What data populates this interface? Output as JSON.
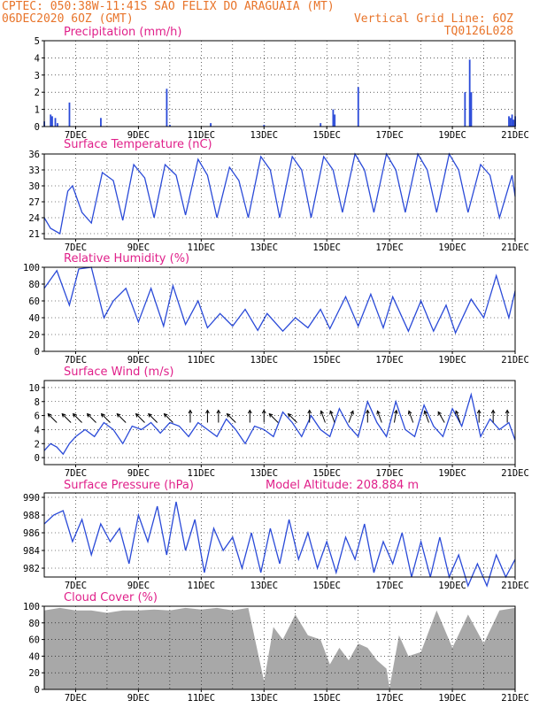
{
  "header": {
    "line1_left": "CPTEC:   050:38W-11:41S   SAO FELIX DO ARAGUAIA (MT)",
    "line2_left": "06DEC2020 6OZ (GMT)",
    "line2_right": "Vertical Grid Line: 6OZ",
    "line3_right": "TQ0126L028"
  },
  "colors": {
    "header_text": "#e8742a",
    "panel_title": "#e0208a",
    "series_line": "#2a4ad8",
    "cloud_fill": "#a8a8a8"
  },
  "x_axis": {
    "days": [
      6,
      21
    ],
    "tick_labels": [
      "7DEC",
      "9DEC",
      "11DEC",
      "13DEC",
      "15DEC",
      "17DEC",
      "19DEC",
      "21DEC"
    ]
  },
  "panels": {
    "precip": {
      "title": "Precipitation (mm/h)"
    },
    "temp": {
      "title": "Surface Temperature (nC)"
    },
    "rh": {
      "title": "Relative Humidity (%)"
    },
    "wind": {
      "title": "Surface Wind (m/s)"
    },
    "pressure": {
      "title": "Surface Pressure (hPa)",
      "model_altitude": "Model Altitude: 208.884 m"
    },
    "cloud": {
      "title": "Cloud Cover (%)"
    }
  },
  "chart_data": [
    {
      "type": "bar",
      "name": "Precipitation",
      "ylabel": "mm/h",
      "ylim": [
        0,
        5
      ],
      "yticks": [
        "0",
        "1",
        "2",
        "3",
        "4",
        "5"
      ],
      "x_day": [
        6.0,
        6.2,
        6.25,
        6.35,
        6.42,
        6.8,
        7.8,
        9.9,
        10.0,
        11.3,
        13.0,
        14.8,
        15.2,
        15.25,
        16.0,
        19.4,
        19.55,
        19.6,
        20.8,
        20.85,
        20.9,
        20.95,
        21.0
      ],
      "values": [
        0.3,
        0.7,
        0.6,
        0.5,
        0.2,
        1.4,
        0.5,
        2.2,
        0.1,
        0.2,
        0.1,
        0.2,
        1.0,
        0.7,
        2.3,
        2.0,
        3.9,
        2.0,
        0.6,
        0.5,
        0.7,
        0.4,
        0.6
      ],
      "grid": true
    },
    {
      "type": "line",
      "name": "Surface Temperature",
      "ylim": [
        20,
        36
      ],
      "yticks": [
        "21",
        "24",
        "27",
        "30",
        "33",
        "36"
      ],
      "x_day": [
        6.0,
        6.2,
        6.5,
        6.75,
        6.9,
        7.2,
        7.5,
        7.85,
        8.2,
        8.5,
        8.85,
        9.2,
        9.5,
        9.85,
        10.2,
        10.5,
        10.9,
        11.2,
        11.5,
        11.9,
        12.2,
        12.5,
        12.9,
        13.2,
        13.5,
        13.9,
        14.2,
        14.5,
        14.9,
        15.2,
        15.5,
        15.9,
        16.2,
        16.5,
        16.9,
        17.2,
        17.5,
        17.9,
        18.2,
        18.5,
        18.9,
        19.2,
        19.5,
        19.9,
        20.2,
        20.5,
        20.9,
        21.0
      ],
      "values": [
        24.0,
        22.0,
        21.0,
        29.0,
        30.0,
        25.0,
        23.0,
        32.5,
        31.0,
        23.5,
        34.0,
        31.5,
        24.0,
        34.0,
        32.0,
        24.5,
        35.0,
        32.0,
        24.0,
        33.5,
        31.0,
        24.0,
        35.5,
        33.0,
        24.0,
        35.5,
        33.0,
        24.0,
        35.5,
        33.0,
        25.0,
        36.0,
        33.0,
        25.0,
        36.0,
        33.0,
        25.0,
        36.0,
        33.0,
        25.0,
        36.0,
        33.0,
        25.0,
        34.0,
        32.0,
        24.0,
        32.0,
        28.0
      ],
      "grid": true
    },
    {
      "type": "line",
      "name": "Relative Humidity",
      "ylim": [
        0,
        100
      ],
      "yticks": [
        "0",
        "20",
        "40",
        "60",
        "80",
        "100"
      ],
      "x_day": [
        6.0,
        6.4,
        6.8,
        7.1,
        7.5,
        7.9,
        8.2,
        8.6,
        9.0,
        9.4,
        9.8,
        10.1,
        10.5,
        10.9,
        11.2,
        11.6,
        12.0,
        12.4,
        12.8,
        13.1,
        13.6,
        14.0,
        14.4,
        14.8,
        15.1,
        15.6,
        16.0,
        16.4,
        16.8,
        17.1,
        17.6,
        18.0,
        18.4,
        18.8,
        19.1,
        19.6,
        20.0,
        20.4,
        20.8,
        21.0
      ],
      "values": [
        75,
        96,
        55,
        98,
        100,
        40,
        60,
        75,
        35,
        75,
        30,
        78,
        32,
        60,
        28,
        45,
        30,
        50,
        25,
        45,
        24,
        40,
        28,
        50,
        27,
        65,
        30,
        68,
        28,
        65,
        24,
        60,
        24,
        55,
        22,
        62,
        40,
        90,
        40,
        72
      ],
      "grid": true
    },
    {
      "type": "line",
      "name": "Surface Wind",
      "ylim": [
        -1,
        11
      ],
      "yticks": [
        "0",
        "2",
        "4",
        "6",
        "8",
        "10"
      ],
      "x_day": [
        6.0,
        6.2,
        6.4,
        6.6,
        6.8,
        7.0,
        7.3,
        7.6,
        7.9,
        8.2,
        8.5,
        8.8,
        9.1,
        9.4,
        9.7,
        10.0,
        10.3,
        10.6,
        10.9,
        11.2,
        11.5,
        11.8,
        12.1,
        12.4,
        12.7,
        13.0,
        13.3,
        13.6,
        13.9,
        14.2,
        14.5,
        14.8,
        15.1,
        15.4,
        15.7,
        16.0,
        16.3,
        16.6,
        16.9,
        17.2,
        17.5,
        17.8,
        18.1,
        18.4,
        18.7,
        19.0,
        19.3,
        19.6,
        19.9,
        20.2,
        20.5,
        20.8,
        21.0
      ],
      "values": [
        1.0,
        2.0,
        1.5,
        0.5,
        2.0,
        3.0,
        4.0,
        3.0,
        5.0,
        4.0,
        2.0,
        4.5,
        4.0,
        5.0,
        3.5,
        5.0,
        4.5,
        3.0,
        5.0,
        4.0,
        3.0,
        5.5,
        4.0,
        2.0,
        4.5,
        4.0,
        3.0,
        6.5,
        5.0,
        3.0,
        6.0,
        4.0,
        3.0,
        7.0,
        4.5,
        3.0,
        8.0,
        5.0,
        3.0,
        8.0,
        4.0,
        3.0,
        7.5,
        4.5,
        3.0,
        7.0,
        4.5,
        9.0,
        3.0,
        5.5,
        4.0,
        5.0,
        2.5
      ],
      "arrow_x_day": [
        6.4,
        6.85,
        7.2,
        7.65,
        8.1,
        8.6,
        9.2,
        9.6,
        10.1,
        10.65,
        11.2,
        11.55,
        12.1,
        12.55,
        13.0,
        13.45,
        14.05,
        14.45,
        14.95,
        15.25,
        15.7,
        16.3,
        16.75,
        17.15,
        17.75,
        18.25,
        18.75,
        19.25,
        19.85,
        20.3,
        20.75
      ],
      "arrow_dir_deg": [
        225,
        225,
        225,
        225,
        225,
        225,
        225,
        225,
        225,
        180,
        180,
        180,
        225,
        180,
        180,
        225,
        225,
        180,
        200,
        200,
        160,
        180,
        200,
        170,
        200,
        200,
        210,
        200,
        180,
        180,
        180
      ],
      "grid": true
    },
    {
      "type": "line",
      "name": "Surface Pressure",
      "ylim": [
        981,
        990.5
      ],
      "yticks": [
        "982",
        "984",
        "986",
        "988",
        "990"
      ],
      "x_day": [
        6.0,
        6.3,
        6.6,
        6.9,
        7.2,
        7.5,
        7.8,
        8.1,
        8.4,
        8.7,
        9.0,
        9.3,
        9.6,
        9.9,
        10.2,
        10.5,
        10.8,
        11.1,
        11.4,
        11.7,
        12.0,
        12.3,
        12.6,
        12.9,
        13.2,
        13.5,
        13.8,
        14.1,
        14.4,
        14.7,
        15.0,
        15.3,
        15.6,
        15.9,
        16.2,
        16.5,
        16.8,
        17.1,
        17.4,
        17.7,
        18.0,
        18.3,
        18.6,
        18.9,
        19.2,
        19.5,
        19.8,
        20.1,
        20.4,
        20.7,
        21.0
      ],
      "values": [
        987.0,
        988.0,
        988.5,
        985.0,
        987.5,
        983.5,
        987.0,
        985.0,
        986.5,
        982.5,
        988.0,
        985.0,
        989.0,
        983.5,
        989.5,
        984.0,
        987.5,
        981.5,
        986.5,
        984.0,
        985.5,
        982.0,
        986.0,
        981.5,
        986.5,
        982.5,
        987.5,
        983.0,
        986.0,
        982.0,
        985.0,
        981.5,
        985.5,
        983.0,
        987.0,
        981.5,
        985.0,
        982.5,
        986.0,
        981.0,
        985.0,
        981.0,
        985.5,
        981.0,
        983.5,
        980.0,
        982.5,
        980.0,
        983.5,
        981.0,
        983.0
      ],
      "grid": true
    },
    {
      "type": "area",
      "name": "Cloud Cover",
      "ylim": [
        0,
        100
      ],
      "yticks": [
        "0",
        "20",
        "40",
        "60",
        "80",
        "100"
      ],
      "x_day": [
        6.0,
        6.5,
        7.0,
        7.5,
        8.0,
        8.5,
        9.0,
        9.5,
        10.0,
        10.5,
        11.0,
        11.5,
        12.0,
        12.5,
        12.8,
        13.0,
        13.3,
        13.6,
        14.0,
        14.4,
        14.8,
        15.1,
        15.4,
        15.7,
        16.0,
        16.3,
        16.6,
        16.9,
        17.0,
        17.3,
        17.6,
        18.0,
        18.5,
        19.0,
        19.5,
        20.0,
        20.5,
        21.0
      ],
      "values": [
        95,
        98,
        95,
        95,
        92,
        95,
        95,
        96,
        95,
        98,
        96,
        98,
        95,
        98,
        45,
        10,
        75,
        60,
        90,
        65,
        60,
        30,
        50,
        35,
        55,
        50,
        35,
        25,
        2,
        65,
        40,
        45,
        95,
        50,
        90,
        55,
        95,
        98
      ],
      "grid": true
    }
  ]
}
